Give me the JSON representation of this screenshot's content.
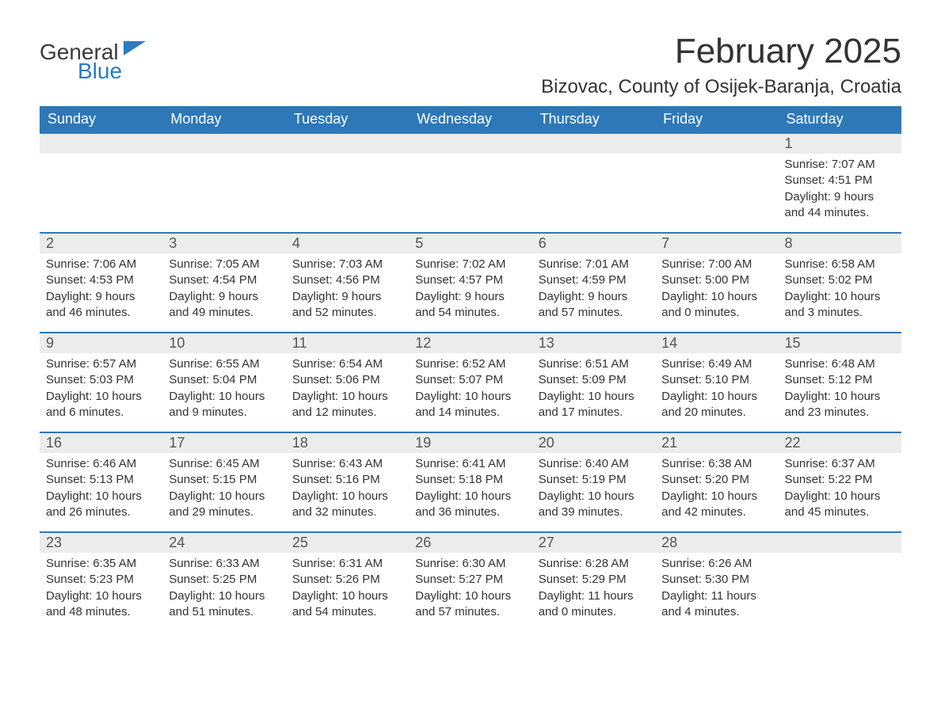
{
  "logo": {
    "word1": "General",
    "word2": "Blue",
    "icon_color": "#2b7cc0"
  },
  "title": "February 2025",
  "location": "Bizovac, County of Osijek-Baranja, Croatia",
  "colors": {
    "header_bg": "#2f78b7",
    "header_text": "#ffffff",
    "daynum_bg": "#ececec",
    "row_top_border": "#2f78b7",
    "body_text": "#333333"
  },
  "weekdays": [
    "Sunday",
    "Monday",
    "Tuesday",
    "Wednesday",
    "Thursday",
    "Friday",
    "Saturday"
  ],
  "weeks": [
    [
      null,
      null,
      null,
      null,
      null,
      null,
      {
        "n": "1",
        "sunrise": "Sunrise: 7:07 AM",
        "sunset": "Sunset: 4:51 PM",
        "dl1": "Daylight: 9 hours",
        "dl2": "and 44 minutes."
      }
    ],
    [
      {
        "n": "2",
        "sunrise": "Sunrise: 7:06 AM",
        "sunset": "Sunset: 4:53 PM",
        "dl1": "Daylight: 9 hours",
        "dl2": "and 46 minutes."
      },
      {
        "n": "3",
        "sunrise": "Sunrise: 7:05 AM",
        "sunset": "Sunset: 4:54 PM",
        "dl1": "Daylight: 9 hours",
        "dl2": "and 49 minutes."
      },
      {
        "n": "4",
        "sunrise": "Sunrise: 7:03 AM",
        "sunset": "Sunset: 4:56 PM",
        "dl1": "Daylight: 9 hours",
        "dl2": "and 52 minutes."
      },
      {
        "n": "5",
        "sunrise": "Sunrise: 7:02 AM",
        "sunset": "Sunset: 4:57 PM",
        "dl1": "Daylight: 9 hours",
        "dl2": "and 54 minutes."
      },
      {
        "n": "6",
        "sunrise": "Sunrise: 7:01 AM",
        "sunset": "Sunset: 4:59 PM",
        "dl1": "Daylight: 9 hours",
        "dl2": "and 57 minutes."
      },
      {
        "n": "7",
        "sunrise": "Sunrise: 7:00 AM",
        "sunset": "Sunset: 5:00 PM",
        "dl1": "Daylight: 10 hours",
        "dl2": "and 0 minutes."
      },
      {
        "n": "8",
        "sunrise": "Sunrise: 6:58 AM",
        "sunset": "Sunset: 5:02 PM",
        "dl1": "Daylight: 10 hours",
        "dl2": "and 3 minutes."
      }
    ],
    [
      {
        "n": "9",
        "sunrise": "Sunrise: 6:57 AM",
        "sunset": "Sunset: 5:03 PM",
        "dl1": "Daylight: 10 hours",
        "dl2": "and 6 minutes."
      },
      {
        "n": "10",
        "sunrise": "Sunrise: 6:55 AM",
        "sunset": "Sunset: 5:04 PM",
        "dl1": "Daylight: 10 hours",
        "dl2": "and 9 minutes."
      },
      {
        "n": "11",
        "sunrise": "Sunrise: 6:54 AM",
        "sunset": "Sunset: 5:06 PM",
        "dl1": "Daylight: 10 hours",
        "dl2": "and 12 minutes."
      },
      {
        "n": "12",
        "sunrise": "Sunrise: 6:52 AM",
        "sunset": "Sunset: 5:07 PM",
        "dl1": "Daylight: 10 hours",
        "dl2": "and 14 minutes."
      },
      {
        "n": "13",
        "sunrise": "Sunrise: 6:51 AM",
        "sunset": "Sunset: 5:09 PM",
        "dl1": "Daylight: 10 hours",
        "dl2": "and 17 minutes."
      },
      {
        "n": "14",
        "sunrise": "Sunrise: 6:49 AM",
        "sunset": "Sunset: 5:10 PM",
        "dl1": "Daylight: 10 hours",
        "dl2": "and 20 minutes."
      },
      {
        "n": "15",
        "sunrise": "Sunrise: 6:48 AM",
        "sunset": "Sunset: 5:12 PM",
        "dl1": "Daylight: 10 hours",
        "dl2": "and 23 minutes."
      }
    ],
    [
      {
        "n": "16",
        "sunrise": "Sunrise: 6:46 AM",
        "sunset": "Sunset: 5:13 PM",
        "dl1": "Daylight: 10 hours",
        "dl2": "and 26 minutes."
      },
      {
        "n": "17",
        "sunrise": "Sunrise: 6:45 AM",
        "sunset": "Sunset: 5:15 PM",
        "dl1": "Daylight: 10 hours",
        "dl2": "and 29 minutes."
      },
      {
        "n": "18",
        "sunrise": "Sunrise: 6:43 AM",
        "sunset": "Sunset: 5:16 PM",
        "dl1": "Daylight: 10 hours",
        "dl2": "and 32 minutes."
      },
      {
        "n": "19",
        "sunrise": "Sunrise: 6:41 AM",
        "sunset": "Sunset: 5:18 PM",
        "dl1": "Daylight: 10 hours",
        "dl2": "and 36 minutes."
      },
      {
        "n": "20",
        "sunrise": "Sunrise: 6:40 AM",
        "sunset": "Sunset: 5:19 PM",
        "dl1": "Daylight: 10 hours",
        "dl2": "and 39 minutes."
      },
      {
        "n": "21",
        "sunrise": "Sunrise: 6:38 AM",
        "sunset": "Sunset: 5:20 PM",
        "dl1": "Daylight: 10 hours",
        "dl2": "and 42 minutes."
      },
      {
        "n": "22",
        "sunrise": "Sunrise: 6:37 AM",
        "sunset": "Sunset: 5:22 PM",
        "dl1": "Daylight: 10 hours",
        "dl2": "and 45 minutes."
      }
    ],
    [
      {
        "n": "23",
        "sunrise": "Sunrise: 6:35 AM",
        "sunset": "Sunset: 5:23 PM",
        "dl1": "Daylight: 10 hours",
        "dl2": "and 48 minutes."
      },
      {
        "n": "24",
        "sunrise": "Sunrise: 6:33 AM",
        "sunset": "Sunset: 5:25 PM",
        "dl1": "Daylight: 10 hours",
        "dl2": "and 51 minutes."
      },
      {
        "n": "25",
        "sunrise": "Sunrise: 6:31 AM",
        "sunset": "Sunset: 5:26 PM",
        "dl1": "Daylight: 10 hours",
        "dl2": "and 54 minutes."
      },
      {
        "n": "26",
        "sunrise": "Sunrise: 6:30 AM",
        "sunset": "Sunset: 5:27 PM",
        "dl1": "Daylight: 10 hours",
        "dl2": "and 57 minutes."
      },
      {
        "n": "27",
        "sunrise": "Sunrise: 6:28 AM",
        "sunset": "Sunset: 5:29 PM",
        "dl1": "Daylight: 11 hours",
        "dl2": "and 0 minutes."
      },
      {
        "n": "28",
        "sunrise": "Sunrise: 6:26 AM",
        "sunset": "Sunset: 5:30 PM",
        "dl1": "Daylight: 11 hours",
        "dl2": "and 4 minutes."
      },
      null
    ]
  ]
}
